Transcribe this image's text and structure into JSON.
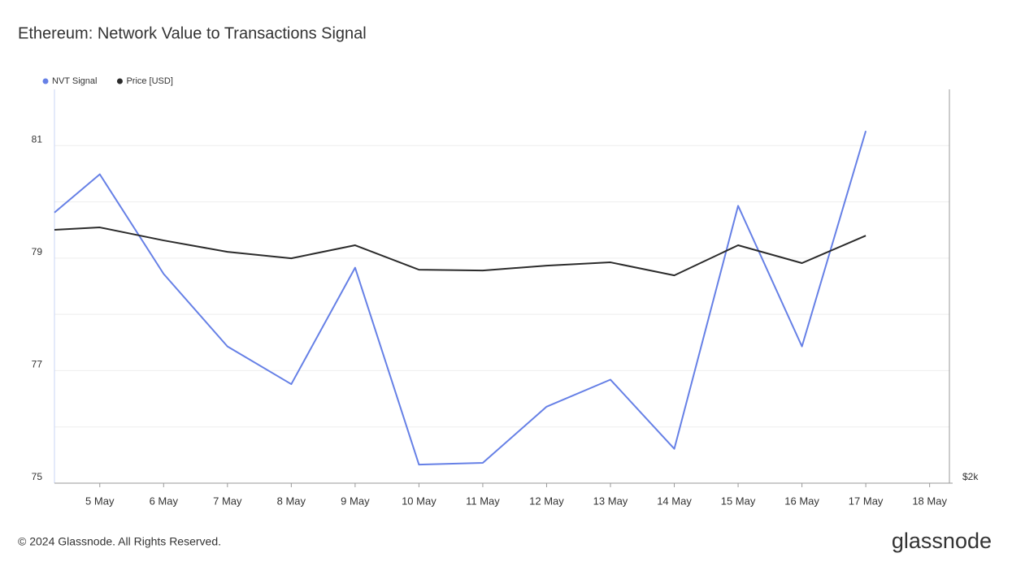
{
  "chart_data": {
    "type": "line",
    "title": "Ethereum: Network Value to Transactions Signal",
    "footer": "© 2024 Glassnode. All Rights Reserved.",
    "brand": "glassnode",
    "x": [
      4.29,
      5,
      6,
      7,
      8,
      9,
      10,
      11,
      12,
      13,
      14,
      15,
      16,
      17
    ],
    "xlim": [
      4.29,
      18.31
    ],
    "xticks": [
      {
        "value": 5,
        "label": "5 May"
      },
      {
        "value": 6,
        "label": "6 May"
      },
      {
        "value": 7,
        "label": "7 May"
      },
      {
        "value": 8,
        "label": "8 May"
      },
      {
        "value": 9,
        "label": "9 May"
      },
      {
        "value": 10,
        "label": "10 May"
      },
      {
        "value": 11,
        "label": "11 May"
      },
      {
        "value": 12,
        "label": "12 May"
      },
      {
        "value": 13,
        "label": "13 May"
      },
      {
        "value": 14,
        "label": "14 May"
      },
      {
        "value": 15,
        "label": "15 May"
      },
      {
        "value": 16,
        "label": "16 May"
      },
      {
        "value": 17,
        "label": "17 May"
      },
      {
        "value": 18,
        "label": "18 May"
      }
    ],
    "ylim": [
      75,
      82
    ],
    "yticks": [
      75,
      77,
      79,
      81
    ],
    "yminor": [
      76,
      78,
      80
    ],
    "y2lim": [
      2000,
      4000
    ],
    "y2log": true,
    "y2ticks": [
      {
        "value": 2000,
        "label": "$2k"
      }
    ],
    "grid": true,
    "legend": "top-left",
    "series": [
      {
        "name": "NVT Signal",
        "color": "#6680e6",
        "axis": "y",
        "values": [
          79.81,
          80.49,
          78.72,
          77.43,
          76.76,
          78.83,
          75.33,
          75.36,
          76.36,
          76.84,
          75.61,
          79.93,
          77.43,
          81.26
        ]
      },
      {
        "name": "Price [USD]",
        "color": "#2b2b2b",
        "axis": "y2",
        "values": [
          3124,
          3137,
          3066,
          3005,
          2971,
          3040,
          2912,
          2908,
          2933,
          2950,
          2883,
          3040,
          2946,
          3092
        ]
      }
    ]
  }
}
